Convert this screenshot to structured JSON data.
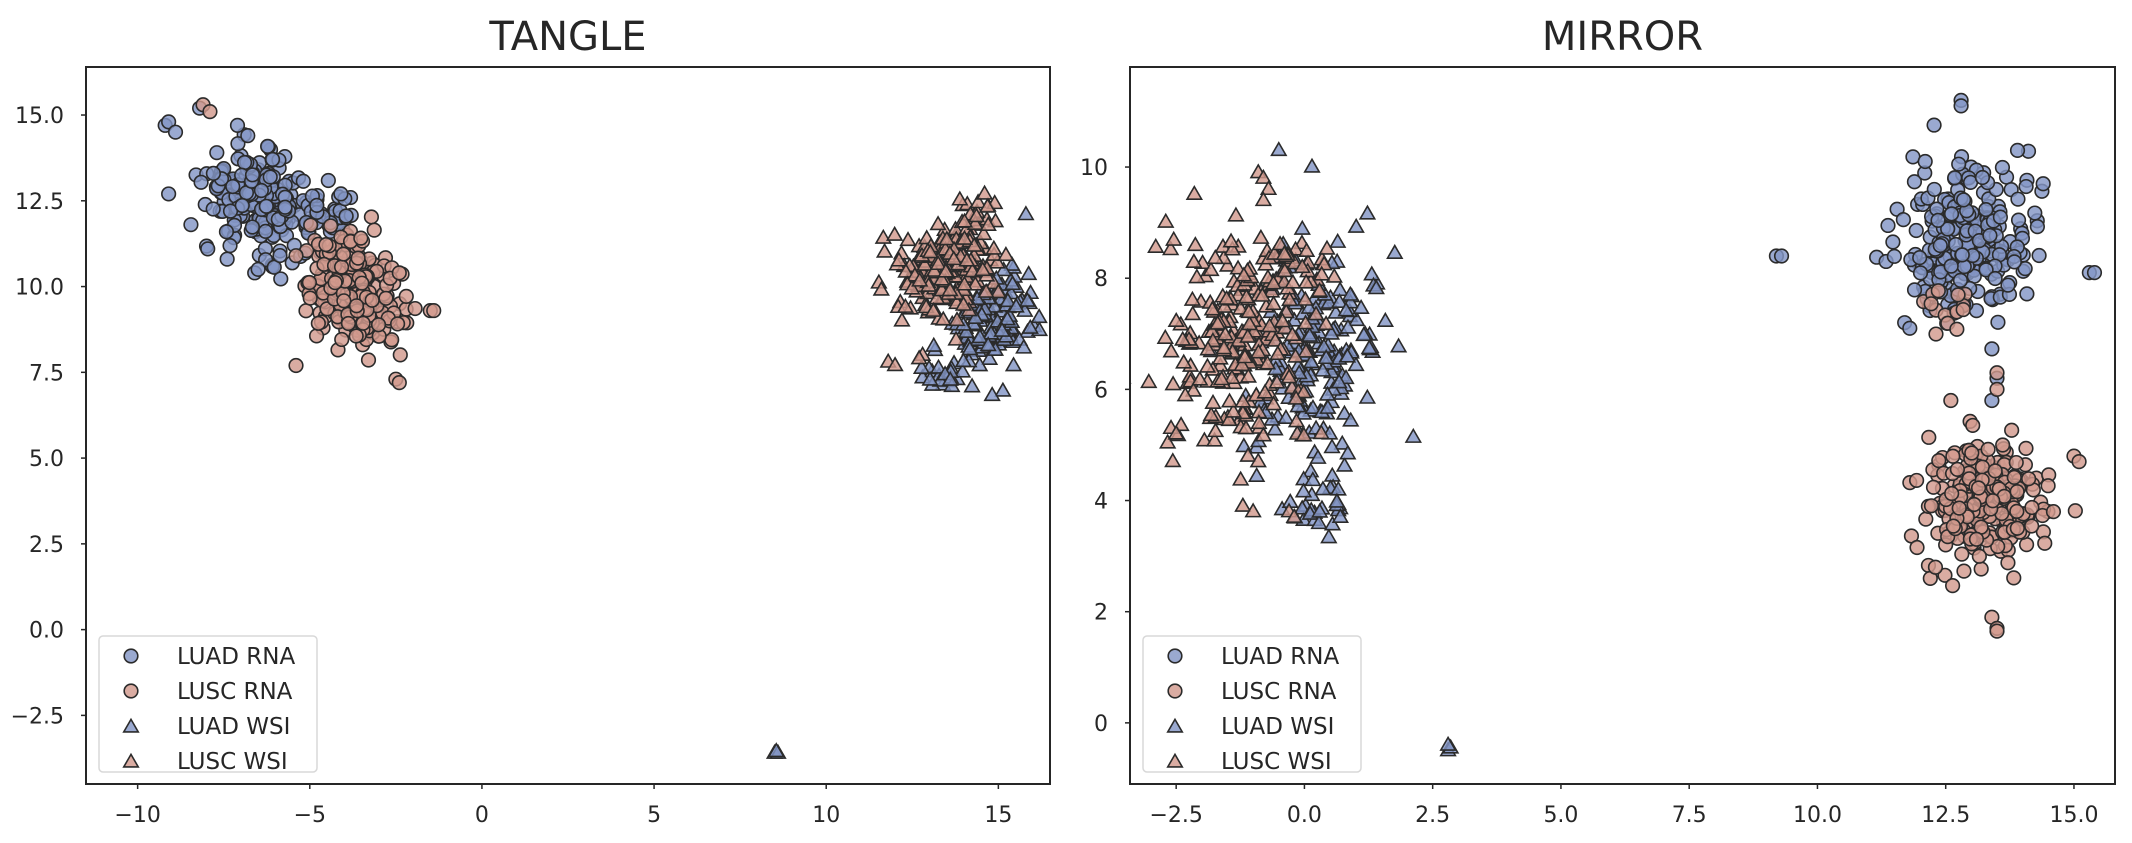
{
  "colors": {
    "luad": "#8496c6",
    "lusc": "#d29a8e",
    "edge": "#2b2b2b",
    "axis": "#262626"
  },
  "chart_data": [
    {
      "type": "scatter",
      "title": "TANGLE",
      "xlabel": "",
      "ylabel": "",
      "xlim": [
        -11.5,
        16.5
      ],
      "ylim": [
        -4.5,
        16.4
      ],
      "xticks": [
        -10,
        -5,
        0,
        5,
        10,
        15
      ],
      "xtick_labels": [
        "−10",
        "−5",
        "0",
        "5",
        "10",
        "15"
      ],
      "yticks": [
        -2.5,
        0.0,
        2.5,
        5.0,
        7.5,
        10.0,
        12.5,
        15.0
      ],
      "ytick_labels": [
        "−2.5",
        "0.0",
        "2.5",
        "5.0",
        "7.5",
        "10.0",
        "12.5",
        "15.0"
      ],
      "grid": false,
      "legend_position": "bottom-left",
      "legend": [
        "LUAD RNA",
        "LUSC RNA",
        "LUAD WSI",
        "LUSC WSI"
      ],
      "series": [
        {
          "name": "LUAD RNA",
          "marker": "circle",
          "color": "luad",
          "clusters": [
            {
              "cx": -6.5,
              "cy": 12.5,
              "sx": 0.75,
              "sy": 0.7,
              "rho": -0.35,
              "n": 220
            },
            {
              "cx": -4.5,
              "cy": 12.0,
              "sx": 0.5,
              "sy": 0.5,
              "rho": 0,
              "n": 40
            }
          ],
          "points": [
            [
              -9.2,
              14.7
            ],
            [
              -9.1,
              14.8
            ],
            [
              -8.9,
              14.5
            ],
            [
              -9.1,
              12.7
            ],
            [
              -7.8,
              13.3
            ],
            [
              -7.1,
              14.7
            ],
            [
              -6.8,
              14.4
            ],
            [
              -7.4,
              10.8
            ],
            [
              -6.6,
              10.4
            ],
            [
              -6.5,
              10.5
            ],
            [
              -4.7,
              11.0
            ],
            [
              -8.2,
              15.2
            ]
          ]
        },
        {
          "name": "LUSC RNA",
          "marker": "circle",
          "color": "lusc",
          "clusters": [
            {
              "cx": -3.6,
              "cy": 9.7,
              "sx": 0.65,
              "sy": 0.7,
              "rho": -0.3,
              "n": 220
            },
            {
              "cx": -4.3,
              "cy": 11.2,
              "sx": 0.5,
              "sy": 0.5,
              "rho": 0,
              "n": 30
            }
          ],
          "points": [
            [
              -8.1,
              15.3
            ],
            [
              -7.9,
              15.1
            ],
            [
              -1.5,
              9.3
            ],
            [
              -1.4,
              9.3
            ],
            [
              -5.4,
              7.7
            ],
            [
              -2.5,
              7.3
            ],
            [
              -2.4,
              7.2
            ],
            [
              -2.4,
              10.4
            ],
            [
              -5.4,
              10.9
            ]
          ]
        },
        {
          "name": "LUAD WSI",
          "marker": "triangle",
          "color": "luad",
          "clusters": [
            {
              "cx": 14.8,
              "cy": 9.0,
              "sx": 0.65,
              "sy": 0.75,
              "rho": 0.25,
              "n": 150
            },
            {
              "cx": 13.5,
              "cy": 7.5,
              "sx": 0.35,
              "sy": 0.25,
              "rho": 0,
              "n": 20
            }
          ],
          "points": [
            [
              15.8,
              12.1
            ],
            [
              8.5,
              -3.6
            ],
            [
              8.6,
              -3.6
            ],
            [
              8.55,
              -3.55
            ]
          ]
        },
        {
          "name": "LUSC WSI",
          "marker": "triangle",
          "color": "lusc",
          "clusters": [
            {
              "cx": 13.6,
              "cy": 10.6,
              "sx": 0.65,
              "sy": 0.65,
              "rho": 0.1,
              "n": 220
            },
            {
              "cx": 14.5,
              "cy": 12.2,
              "sx": 0.3,
              "sy": 0.3,
              "rho": 0,
              "n": 15
            }
          ],
          "points": [
            [
              11.6,
              9.9
            ],
            [
              11.8,
              7.8
            ],
            [
              12.0,
              7.7
            ],
            [
              12.2,
              9.0
            ],
            [
              12.3,
              9.4
            ],
            [
              12.8,
              8.0
            ],
            [
              12.7,
              7.9
            ],
            [
              14.6,
              12.7
            ]
          ]
        }
      ]
    },
    {
      "type": "scatter",
      "title": "MIRROR",
      "xlabel": "",
      "ylabel": "",
      "xlim": [
        -3.4,
        15.8
      ],
      "ylim": [
        -1.1,
        11.8
      ],
      "xticks": [
        -2.5,
        0.0,
        2.5,
        5.0,
        7.5,
        10.0,
        12.5,
        15.0
      ],
      "xtick_labels": [
        "−2.5",
        "0.0",
        "2.5",
        "5.0",
        "7.5",
        "10.0",
        "12.5",
        "15.0"
      ],
      "yticks": [
        0,
        2,
        4,
        6,
        8,
        10
      ],
      "ytick_labels": [
        "0",
        "2",
        "4",
        "6",
        "8",
        "10"
      ],
      "grid": false,
      "legend_position": "bottom-left",
      "legend": [
        "LUAD RNA",
        "LUSC RNA",
        "LUAD WSI",
        "LUSC WSI"
      ],
      "series": [
        {
          "name": "LUAD RNA",
          "marker": "circle",
          "color": "luad",
          "clusters": [
            {
              "cx": 12.9,
              "cy": 8.7,
              "sx": 0.6,
              "sy": 0.65,
              "rho": 0,
              "n": 260
            }
          ],
          "points": [
            [
              12.8,
              11.2
            ],
            [
              12.8,
              11.1
            ],
            [
              12.1,
              10.1
            ],
            [
              13.9,
              10.3
            ],
            [
              14.4,
              9.7
            ],
            [
              15.3,
              8.1
            ],
            [
              15.4,
              8.1
            ],
            [
              9.2,
              8.4
            ],
            [
              9.3,
              8.4
            ],
            [
              11.7,
              7.2
            ],
            [
              11.8,
              7.1
            ],
            [
              13.5,
              6.2
            ],
            [
              13.4,
              5.8
            ]
          ]
        },
        {
          "name": "LUSC RNA",
          "marker": "circle",
          "color": "lusc",
          "clusters": [
            {
              "cx": 13.3,
              "cy": 4.0,
              "sx": 0.55,
              "sy": 0.55,
              "rho": 0,
              "n": 270
            },
            {
              "cx": 12.5,
              "cy": 7.5,
              "sx": 0.35,
              "sy": 0.25,
              "rho": 0,
              "n": 15
            }
          ],
          "points": [
            [
              13.5,
              6.3
            ],
            [
              13.5,
              6.0
            ],
            [
              12.6,
              5.8
            ],
            [
              15.0,
              4.8
            ],
            [
              15.1,
              4.7
            ],
            [
              12.2,
              2.6
            ],
            [
              12.3,
              2.8
            ],
            [
              13.4,
              1.9
            ],
            [
              13.5,
              1.7
            ],
            [
              13.5,
              1.65
            ],
            [
              14.6,
              3.8
            ]
          ]
        },
        {
          "name": "LUAD WSI",
          "marker": "triangle",
          "color": "luad",
          "clusters": [
            {
              "cx": 0.2,
              "cy": 6.6,
              "sx": 0.6,
              "sy": 1.05,
              "rho": 0,
              "n": 200
            },
            {
              "cx": 0.3,
              "cy": 3.9,
              "sx": 0.55,
              "sy": 0.2,
              "rho": 0,
              "n": 25
            }
          ],
          "points": [
            [
              -0.5,
              10.3
            ],
            [
              2.8,
              -0.5
            ],
            [
              2.85,
              -0.45
            ],
            [
              2.8,
              -0.4
            ],
            [
              0.7,
              3.7
            ]
          ]
        },
        {
          "name": "LUSC WSI",
          "marker": "triangle",
          "color": "lusc",
          "clusters": [
            {
              "cx": -1.3,
              "cy": 6.8,
              "sx": 0.65,
              "sy": 0.95,
              "rho": 0,
              "n": 230
            },
            {
              "cx": -0.2,
              "cy": 8.0,
              "sx": 0.5,
              "sy": 0.4,
              "rho": 0,
              "n": 40
            }
          ],
          "points": [
            [
              -0.9,
              9.9
            ],
            [
              -0.8,
              9.8
            ],
            [
              -0.7,
              9.6
            ],
            [
              -0.8,
              9.4
            ],
            [
              -2.6,
              5.3
            ],
            [
              -2.5,
              5.2
            ],
            [
              -1.1,
              4.8
            ],
            [
              -1.2,
              3.9
            ],
            [
              -1.0,
              3.8
            ],
            [
              -0.3,
              3.8
            ],
            [
              -0.2,
              3.7
            ],
            [
              -0.9,
              4.7
            ]
          ]
        }
      ]
    }
  ]
}
